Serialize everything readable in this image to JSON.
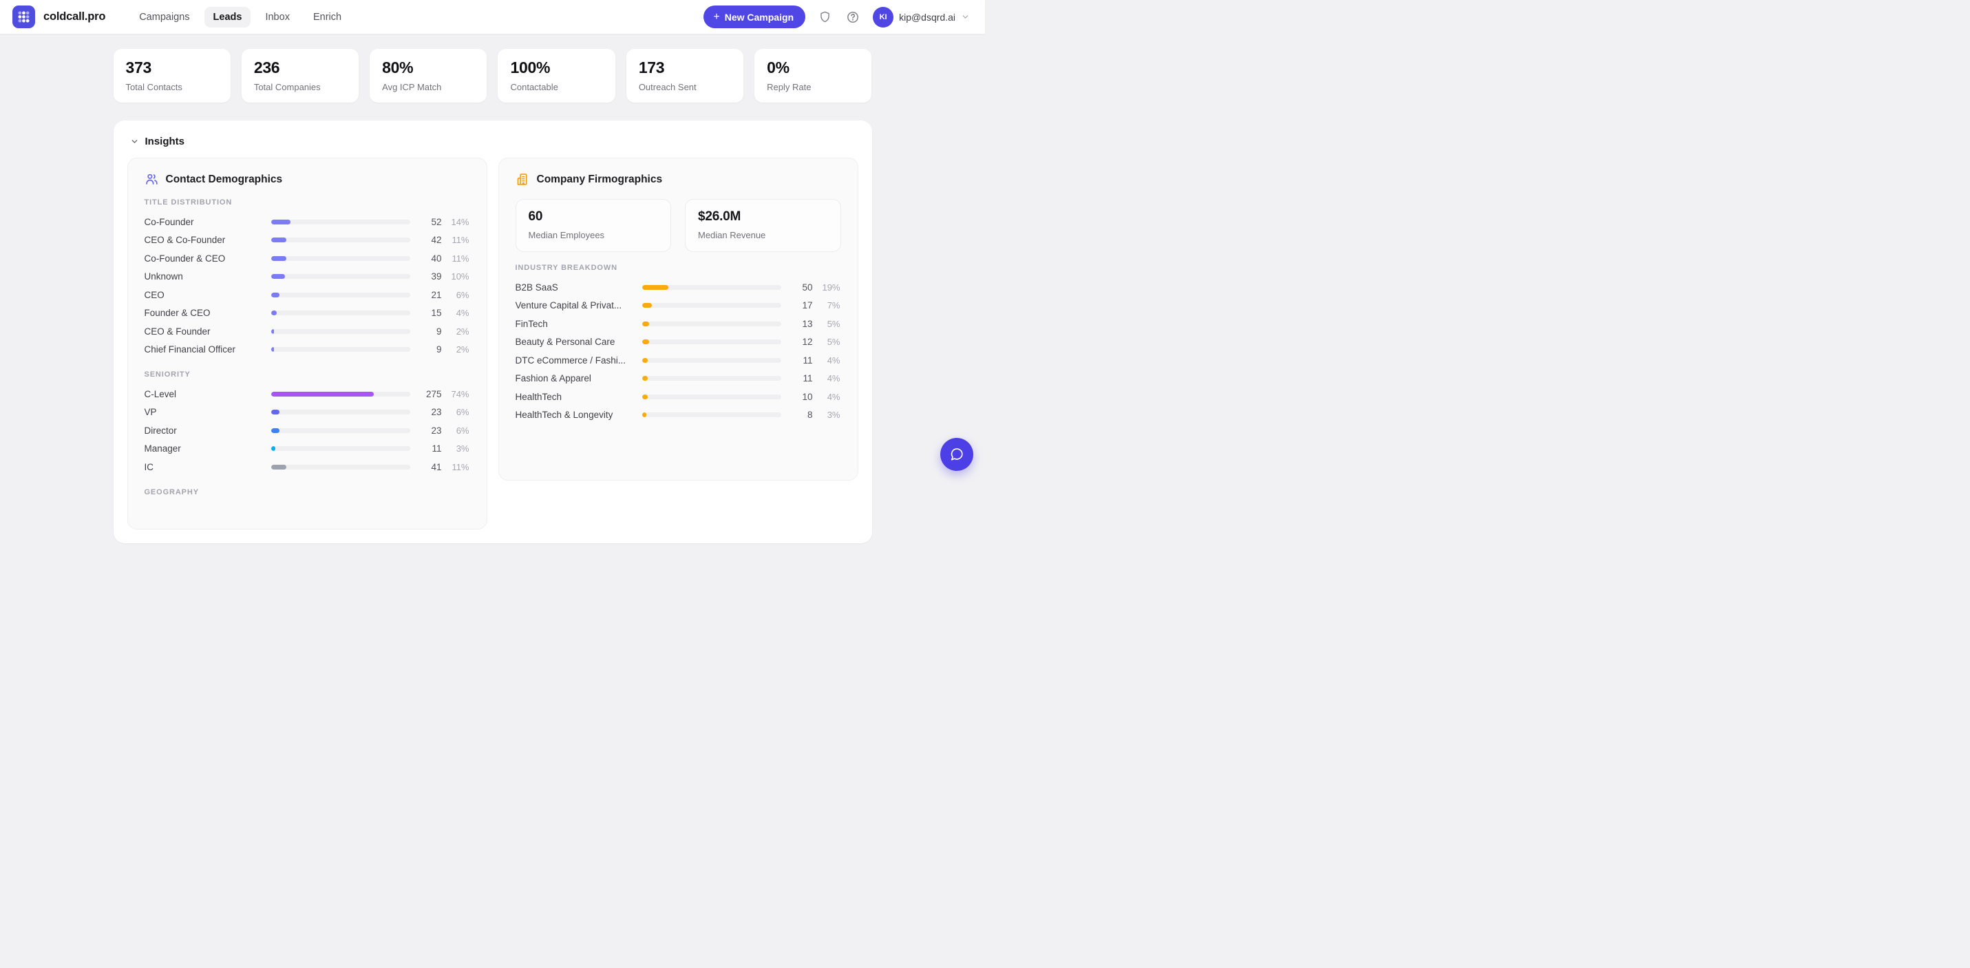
{
  "brand": {
    "name": "coldcall.pro"
  },
  "nav": {
    "items": [
      {
        "label": "Campaigns",
        "active": false
      },
      {
        "label": "Leads",
        "active": true
      },
      {
        "label": "Inbox",
        "active": false
      },
      {
        "label": "Enrich",
        "active": false
      }
    ]
  },
  "header": {
    "new_campaign": {
      "plus": "+",
      "label": "New Campaign"
    },
    "user": {
      "initials": "KI",
      "email": "kip@dsqrd.ai"
    }
  },
  "stats": [
    {
      "value": "373",
      "label": "Total Contacts"
    },
    {
      "value": "236",
      "label": "Total Companies"
    },
    {
      "value": "80%",
      "label": "Avg ICP Match"
    },
    {
      "value": "100%",
      "label": "Contactable"
    },
    {
      "value": "173",
      "label": "Outreach Sent"
    },
    {
      "value": "0%",
      "label": "Reply Rate"
    }
  ],
  "insights": {
    "title": "Insights"
  },
  "demographics": {
    "title": "Contact Demographics",
    "title_distribution": {
      "label": "TITLE DISTRIBUTION",
      "rows": [
        {
          "label": "Co-Founder",
          "value": "52",
          "pct": "14%"
        },
        {
          "label": "CEO & Co-Founder",
          "value": "42",
          "pct": "11%"
        },
        {
          "label": "Co-Founder & CEO",
          "value": "40",
          "pct": "11%"
        },
        {
          "label": "Unknown",
          "value": "39",
          "pct": "10%"
        },
        {
          "label": "CEO",
          "value": "21",
          "pct": "6%"
        },
        {
          "label": "Founder & CEO",
          "value": "15",
          "pct": "4%"
        },
        {
          "label": "CEO & Founder",
          "value": "9",
          "pct": "2%"
        },
        {
          "label": "Chief Financial Officer",
          "value": "9",
          "pct": "2%"
        }
      ]
    },
    "seniority": {
      "label": "SENIORITY",
      "rows": [
        {
          "label": "C-Level",
          "value": "275",
          "pct": "74%",
          "color": "#a855f7"
        },
        {
          "label": "VP",
          "value": "23",
          "pct": "6%",
          "color": "#6366f1"
        },
        {
          "label": "Director",
          "value": "23",
          "pct": "6%",
          "color": "#3b82f6"
        },
        {
          "label": "Manager",
          "value": "11",
          "pct": "3%",
          "color": "#0ab1f0"
        },
        {
          "label": "IC",
          "value": "41",
          "pct": "11%",
          "color": "#9ca3af"
        }
      ]
    },
    "geography": {
      "label": "GEOGRAPHY"
    }
  },
  "firmographics": {
    "title": "Company Firmographics",
    "metrics": [
      {
        "value": "60",
        "label": "Median Employees"
      },
      {
        "value": "$26.0M",
        "label": "Median Revenue"
      }
    ],
    "industry": {
      "label": "INDUSTRY BREAKDOWN",
      "rows": [
        {
          "label": "B2B SaaS",
          "value": "50",
          "pct": "19%"
        },
        {
          "label": "Venture Capital & Privat...",
          "value": "17",
          "pct": "7%"
        },
        {
          "label": "FinTech",
          "value": "13",
          "pct": "5%"
        },
        {
          "label": "Beauty & Personal Care",
          "value": "12",
          "pct": "5%"
        },
        {
          "label": "DTC eCommerce / Fashi...",
          "value": "11",
          "pct": "4%"
        },
        {
          "label": "Fashion & Apparel",
          "value": "11",
          "pct": "4%"
        },
        {
          "label": "HealthTech",
          "value": "10",
          "pct": "4%"
        },
        {
          "label": "HealthTech & Longevity",
          "value": "8",
          "pct": "3%"
        }
      ]
    }
  },
  "colors": {
    "accent": "#4f46e5",
    "indigo_bar": "#7b7bf5",
    "amber_bar": "#fbaa0d",
    "track": "#efeff1",
    "demographics_icon": "#6366f1",
    "firmographics_icon": "#f59e0b"
  }
}
